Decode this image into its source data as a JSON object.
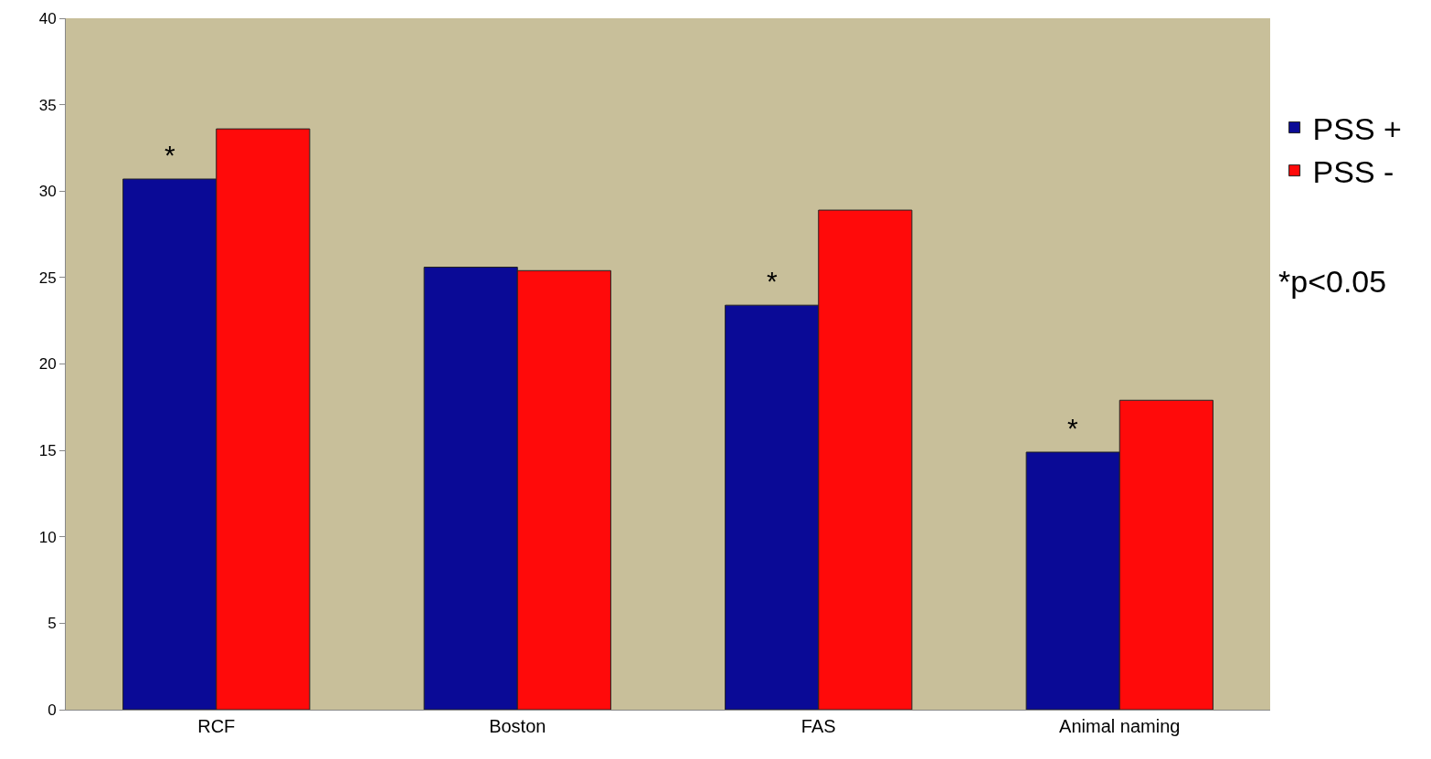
{
  "chart_data": {
    "type": "bar",
    "categories": [
      "RCF",
      "Boston",
      "FAS",
      "Animal naming"
    ],
    "series": [
      {
        "name": "PSS +",
        "color": "#0a0a96",
        "values": [
          30.7,
          25.6,
          23.4,
          14.9
        ]
      },
      {
        "name": "PSS -",
        "color": "#ff0a0a",
        "values": [
          33.6,
          25.4,
          28.9,
          17.9
        ]
      }
    ],
    "ylim": [
      0,
      40
    ],
    "yticks": [
      0,
      5,
      10,
      15,
      20,
      25,
      30,
      35,
      40
    ],
    "grid": false,
    "legend": "right",
    "annotations": [
      {
        "text": "*",
        "x": "RCF",
        "y": 30.7
      },
      {
        "text": "*",
        "x": "FAS",
        "y": 23.4
      },
      {
        "text": "*",
        "x": "Animal naming",
        "y": 14.9
      },
      "*p<0.05"
    ]
  }
}
